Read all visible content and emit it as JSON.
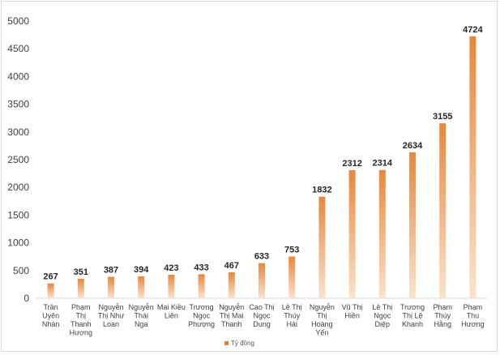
{
  "chart_data": {
    "type": "bar",
    "categories": [
      [
        "Trần",
        "Uyên",
        "Nhàn"
      ],
      [
        "Phạm",
        "Thị",
        "Thanh",
        "Hương"
      ],
      [
        "Nguyễn",
        "Thị Như",
        "Loan"
      ],
      [
        "Nguyễn",
        "Thái",
        "Nga"
      ],
      [
        "Mai Kiều",
        "Liên"
      ],
      [
        "Trương",
        "Ngọc",
        "Phượng"
      ],
      [
        "Nguyễn",
        "Thị Mai",
        "Thanh"
      ],
      [
        "Cao Thị",
        "Ngọc",
        "Dung"
      ],
      [
        "Lê Thị",
        "Thúy",
        "Hải"
      ],
      [
        "Nguyễn",
        "Thị",
        "Hoàng",
        "Yến"
      ],
      [
        "Vũ Thị",
        "Hiền"
      ],
      [
        "Lê Thị",
        "Ngọc",
        "Diệp"
      ],
      [
        "Trương",
        "Thị Lệ",
        "Khanh"
      ],
      [
        "Phạm",
        "Thúy",
        "Hằng"
      ],
      [
        "Phạm",
        "Thu",
        "Hương"
      ]
    ],
    "series": [
      {
        "name": "Tỷ đồng",
        "values": [
          267,
          351,
          387,
          394,
          423,
          433,
          467,
          633,
          753,
          1832,
          2312,
          2314,
          2634,
          3155,
          4724
        ]
      }
    ],
    "ylim": [
      0,
      5000
    ],
    "yticks": [
      0,
      500,
      1000,
      1500,
      2000,
      2500,
      3000,
      3500,
      4000,
      4500,
      5000
    ],
    "grid": false,
    "legend_position": "bottom",
    "colors": {
      "bar_top": "#e8873a",
      "bar_bottom": "#fbe3cc",
      "legend_swatch": "#ed7d31"
    }
  }
}
